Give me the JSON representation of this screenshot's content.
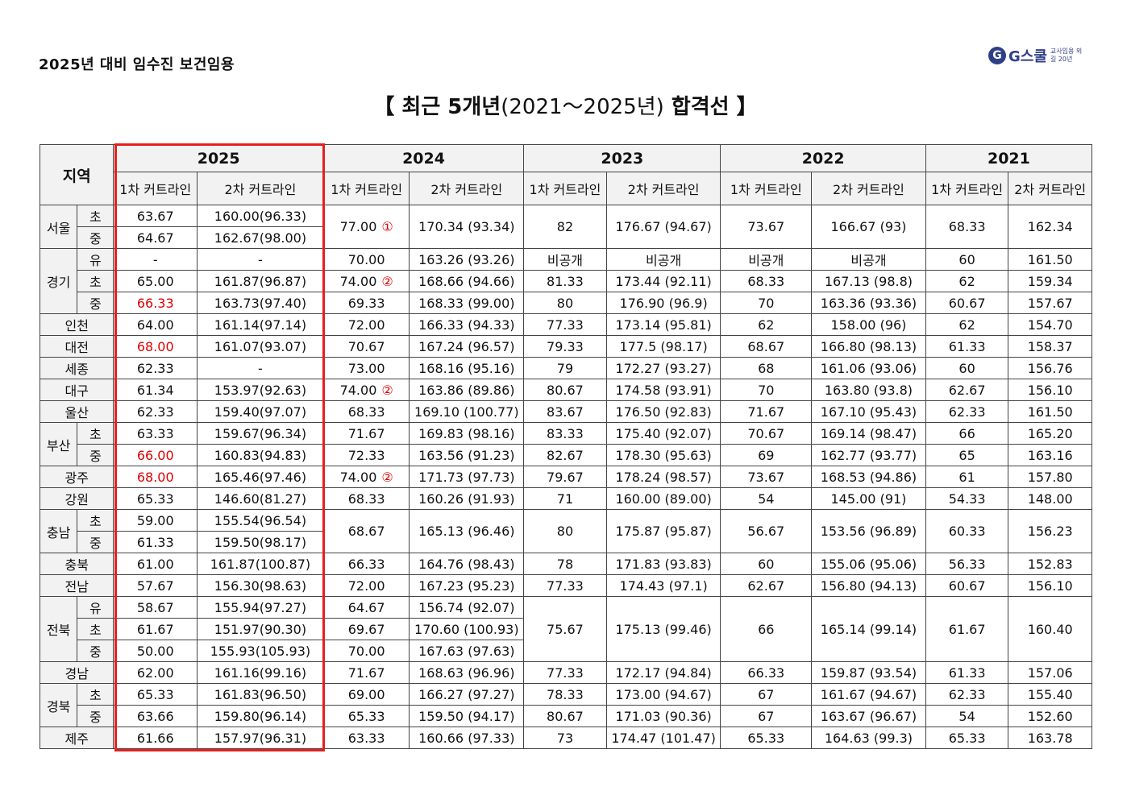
{
  "header": {
    "label": "2025년 대비 임수진 보건임용",
    "logo_mark": "G",
    "logo_name": "G스쿨",
    "logo_tagline": "교사임용 외길 20년"
  },
  "title": {
    "open": "【 최근 5개년",
    "mid": "(2021～2025년)",
    "close": "합격선 】"
  },
  "table": {
    "region_header": "지역",
    "years": [
      "2025",
      "2024",
      "2023",
      "2022",
      "2021"
    ],
    "sub_headers": [
      "1차 커트라인",
      "2차 커트라인"
    ],
    "regions": {
      "seoul": "서울",
      "gyeonggi": "경기",
      "incheon": "인천",
      "daejeon": "대전",
      "sejong": "세종",
      "daegu": "대구",
      "ulsan": "울산",
      "busan": "부산",
      "gwangju": "광주",
      "gangwon": "강원",
      "chungnam": "충남",
      "chungbuk": "충북",
      "jeonnam": "전남",
      "jeonbuk": "전북",
      "gyeongnam": "경남",
      "gyeongbuk": "경북",
      "jeju": "제주"
    },
    "sub": {
      "cho": "초",
      "jung": "중",
      "yu": "유"
    },
    "circles": {
      "c1": "①",
      "c2": "②"
    },
    "seoul": {
      "cho_2025": [
        "63.67",
        "160.00(96.33)"
      ],
      "jung_2025": [
        "64.67",
        "162.67(98.00)"
      ],
      "y2024": [
        "77.00",
        "170.34 (93.34)"
      ],
      "y2023": [
        "82",
        "176.67 (94.67)"
      ],
      "y2022": [
        "73.67",
        "166.67   (93)"
      ],
      "y2021": [
        "68.33",
        "162.34"
      ]
    },
    "gyeonggi": {
      "yu": [
        "-",
        "-",
        "70.00",
        "163.26 (93.26)",
        "비공개",
        "비공개",
        "비공개",
        "비공개",
        "60",
        "161.50"
      ],
      "cho": [
        "65.00",
        "161.87(96.87)",
        "74.00",
        "168.66 (94.66)",
        "81.33",
        "173.44 (92.11)",
        "68.33",
        "167.13   (98.8)",
        "62",
        "159.34"
      ],
      "jung": [
        "66.33",
        "163.73(97.40)",
        "69.33",
        "168.33 (99.00)",
        "80",
        "176.90 (96.9)",
        "70",
        "163.36   (93.36)",
        "60.67",
        "157.67"
      ]
    },
    "incheon": [
      "64.00",
      "161.14(97.14)",
      "72.00",
      "166.33 (94.33)",
      "77.33",
      "173.14 (95.81)",
      "62",
      "158.00   (96)",
      "62",
      "154.70"
    ],
    "daejeon": [
      "68.00",
      "161.07(93.07)",
      "70.67",
      "167.24 (96.57)",
      "79.33",
      "177.5 (98.17)",
      "68.67",
      "166.80   (98.13)",
      "61.33",
      "158.37"
    ],
    "sejong": [
      "62.33",
      "-",
      "73.00",
      "168.16 (95.16)",
      "79",
      "172.27 (93.27)",
      "68",
      "161.06   (93.06)",
      "60",
      "156.76"
    ],
    "daegu": [
      "61.34",
      "153.97(92.63)",
      "74.00",
      "163.86 (89.86)",
      "80.67",
      "174.58 (93.91)",
      "70",
      "163.80   (93.8)",
      "62.67",
      "156.10"
    ],
    "ulsan": [
      "62.33",
      "159.40(97.07)",
      "68.33",
      "169.10 (100.77)",
      "83.67",
      "176.50 (92.83)",
      "71.67",
      "167.10   (95.43)",
      "62.33",
      "161.50"
    ],
    "busan": {
      "cho": [
        "63.33",
        "159.67(96.34)",
        "71.67",
        "169.83 (98.16)",
        "83.33",
        "175.40 (92.07)",
        "70.67",
        "169.14   (98.47)",
        "66",
        "165.20"
      ],
      "jung": [
        "66.00",
        "160.83(94.83)",
        "72.33",
        "163.56 (91.23)",
        "82.67",
        "178.30 (95.63)",
        "69",
        "162.77   (93.77)",
        "65",
        "163.16"
      ]
    },
    "gwangju": [
      "68.00",
      "165.46(97.46)",
      "74.00",
      "171.73 (97.73)",
      "79.67",
      "178.24 (98.57)",
      "73.67",
      "168.53   (94.86)",
      "61",
      "157.80"
    ],
    "gangwon": [
      "65.33",
      "146.60(81.27)",
      "68.33",
      "160.26 (91.93)",
      "71",
      "160.00 (89.00)",
      "54",
      "145.00   (91)",
      "54.33",
      "148.00"
    ],
    "chungnam": {
      "cho_2025": [
        "59.00",
        "155.54(96.54)"
      ],
      "jung_2025": [
        "61.33",
        "159.50(98.17)"
      ],
      "y2024": [
        "68.67",
        "165.13 (96.46)"
      ],
      "y2023": [
        "80",
        "175.87 (95.87)"
      ],
      "y2022": [
        "56.67",
        "153.56   (96.89)"
      ],
      "y2021": [
        "60.33",
        "156.23"
      ]
    },
    "chungbuk": [
      "61.00",
      "161.87(100.87)",
      "66.33",
      "164.76 (98.43)",
      "78",
      "171.83 (93.83)",
      "60",
      "155.06   (95.06)",
      "56.33",
      "152.83"
    ],
    "jeonnam": [
      "57.67",
      "156.30(98.63)",
      "72.00",
      "167.23 (95.23)",
      "77.33",
      "174.43 (97.1)",
      "62.67",
      "156.80   (94.13)",
      "60.67",
      "156.10"
    ],
    "jeonbuk": {
      "yu": [
        "58.67",
        "155.94(97.27)",
        "64.67",
        "156.74 (92.07)"
      ],
      "cho": [
        "61.67",
        "151.97(90.30)",
        "69.67",
        "170.60 (100.93)"
      ],
      "jung": [
        "50.00",
        "155.93(105.93)",
        "70.00",
        "167.63 (97.63)"
      ],
      "merged": [
        "75.67",
        "175.13 (99.46)",
        "66",
        "165.14   (99.14)",
        "61.67",
        "160.40"
      ]
    },
    "gyeongnam": [
      "62.00",
      "161.16(99.16)",
      "71.67",
      "168.63 (96.96)",
      "77.33",
      "172.17 (94.84)",
      "66.33",
      "159.87   (93.54)",
      "61.33",
      "157.06"
    ],
    "gyeongbuk": {
      "cho": [
        "65.33",
        "161.83(96.50)",
        "69.00",
        "166.27 (97.27)",
        "78.33",
        "173.00 (94.67)",
        "67",
        "161.67   (94.67)",
        "62.33",
        "155.40"
      ],
      "jung": [
        "63.66",
        "159.80(96.14)",
        "65.33",
        "159.50 (94.17)",
        "80.67",
        "171.03 (90.36)",
        "67",
        "163.67   (96.67)",
        "54",
        "152.60"
      ]
    },
    "jeju": [
      "61.66",
      "157.97(96.31)",
      "63.33",
      "160.66 (97.33)",
      "73",
      "174.47 (101.47)",
      "65.33",
      "164.63   (99.3)",
      "65.33",
      "163.78"
    ],
    "highlight_color": "#e61e1e",
    "emphasis_color": "#e00000"
  }
}
